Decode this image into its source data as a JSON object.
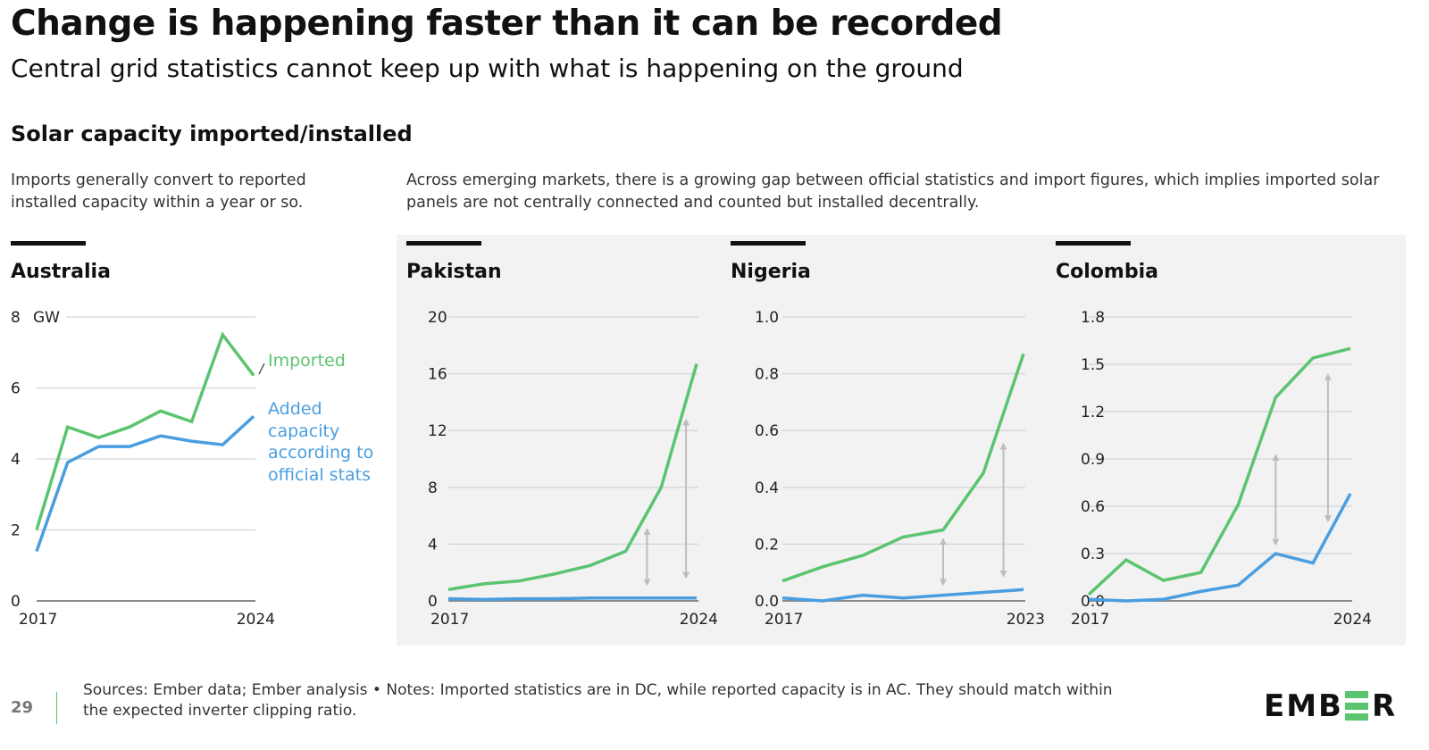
{
  "header": {
    "title": "Change is happening faster than it can be recorded",
    "subtitle": "Central grid statistics cannot keep up with what is happening on the ground",
    "section_title": "Solar capacity imported/installed",
    "left_description": "Imports generally convert to reported installed capacity within a year or so.",
    "right_description": "Across emerging markets, there is a growing gap between official statistics and import figures, which implies imported solar panels are not centrally connected and counted but installed decentrally."
  },
  "colors": {
    "imported": "#5bc46f",
    "official": "#4a9ee0",
    "grid": "#d4d4d4",
    "arrow": "#bdbdbd",
    "panel_bg": "#f2f2f2"
  },
  "legend": {
    "imported": "Imported",
    "official": "Added capacity according to official stats",
    "official_lines": [
      "Added",
      "capacity",
      "according to",
      "official stats"
    ]
  },
  "chart_data": [
    {
      "type": "line",
      "title": "Australia",
      "unit": "GW",
      "x": [
        2017,
        2018,
        2019,
        2020,
        2021,
        2022,
        2023,
        2024
      ],
      "x_tick_labels": [
        "2017",
        "2024"
      ],
      "ylim": [
        0,
        8
      ],
      "y_ticks": [
        0,
        2,
        4,
        6,
        8
      ],
      "y_tick_labels": [
        "0",
        "2",
        "4",
        "6",
        "8"
      ],
      "grid": true,
      "series": [
        {
          "name": "Imported",
          "values": [
            2.0,
            4.9,
            4.6,
            4.9,
            5.35,
            5.05,
            7.5,
            6.35
          ]
        },
        {
          "name": "Added capacity according to official stats",
          "values": [
            1.4,
            3.9,
            4.35,
            4.35,
            4.65,
            4.5,
            4.4,
            5.2
          ]
        }
      ],
      "gap_arrows": []
    },
    {
      "type": "line",
      "title": "Pakistan",
      "x": [
        2017,
        2018,
        2019,
        2020,
        2021,
        2022,
        2023,
        2024
      ],
      "x_tick_labels": [
        "2017",
        "2024"
      ],
      "ylim": [
        0,
        20
      ],
      "y_ticks": [
        0,
        4,
        8,
        12,
        16,
        20
      ],
      "y_tick_labels": [
        "0",
        "4",
        "8",
        "12",
        "16",
        "20"
      ],
      "grid": true,
      "series": [
        {
          "name": "Imported",
          "values": [
            0.8,
            1.2,
            1.4,
            1.9,
            2.5,
            3.5,
            8.0,
            16.7
          ]
        },
        {
          "name": "Added capacity according to official stats",
          "values": [
            0.15,
            0.1,
            0.15,
            0.15,
            0.2,
            0.2,
            0.2,
            0.2
          ]
        }
      ],
      "gap_arrows": [
        {
          "x": 2022.6,
          "from": 1.3,
          "to": 4.9
        },
        {
          "x": 2023.7,
          "from": 1.8,
          "to": 12.6
        }
      ]
    },
    {
      "type": "line",
      "title": "Nigeria",
      "x": [
        2017,
        2018,
        2019,
        2020,
        2021,
        2022,
        2023
      ],
      "x_tick_labels": [
        "2017",
        "2023"
      ],
      "ylim": [
        0,
        1.0
      ],
      "y_ticks": [
        0,
        0.2,
        0.4,
        0.6,
        0.8,
        1.0
      ],
      "y_tick_labels": [
        "0.0",
        "0.2",
        "0.4",
        "0.6",
        "0.8",
        "1.0"
      ],
      "grid": true,
      "series": [
        {
          "name": "Imported",
          "values": [
            0.07,
            0.12,
            0.16,
            0.225,
            0.25,
            0.45,
            0.87
          ]
        },
        {
          "name": "Added capacity according to official stats",
          "values": [
            0.01,
            0.0,
            0.02,
            0.01,
            0.02,
            0.03,
            0.04
          ]
        }
      ],
      "gap_arrows": [
        {
          "x": 2021.0,
          "from": 0.065,
          "to": 0.21
        },
        {
          "x": 2022.5,
          "from": 0.095,
          "to": 0.545
        }
      ]
    },
    {
      "type": "line",
      "title": "Colombia",
      "x": [
        2017,
        2018,
        2019,
        2020,
        2021,
        2022,
        2023,
        2024
      ],
      "x_tick_labels": [
        "2017",
        "2024"
      ],
      "ylim": [
        0,
        1.8
      ],
      "y_ticks": [
        0,
        0.3,
        0.6,
        0.9,
        1.2,
        1.5,
        1.8
      ],
      "y_tick_labels": [
        "0.0",
        "0.3",
        "0.6",
        "0.9",
        "1.2",
        "1.5",
        "1.8"
      ],
      "grid": true,
      "series": [
        {
          "name": "Imported",
          "values": [
            0.04,
            0.26,
            0.13,
            0.18,
            0.61,
            1.29,
            1.54,
            1.6
          ]
        },
        {
          "name": "Added capacity according to official stats",
          "values": [
            0.01,
            0.0,
            0.01,
            0.06,
            0.1,
            0.3,
            0.24,
            0.68
          ]
        }
      ],
      "gap_arrows": [
        {
          "x": 2022.0,
          "from": 0.37,
          "to": 0.91
        },
        {
          "x": 2023.4,
          "from": 0.52,
          "to": 1.42
        }
      ]
    }
  ],
  "footer": {
    "page_number": "29",
    "sources": "Sources: Ember data; Ember analysis • Notes: Imported statistics are in DC, while reported capacity is in AC. They should match within the expected inverter clipping ratio.",
    "logo_text": "EMBER"
  }
}
